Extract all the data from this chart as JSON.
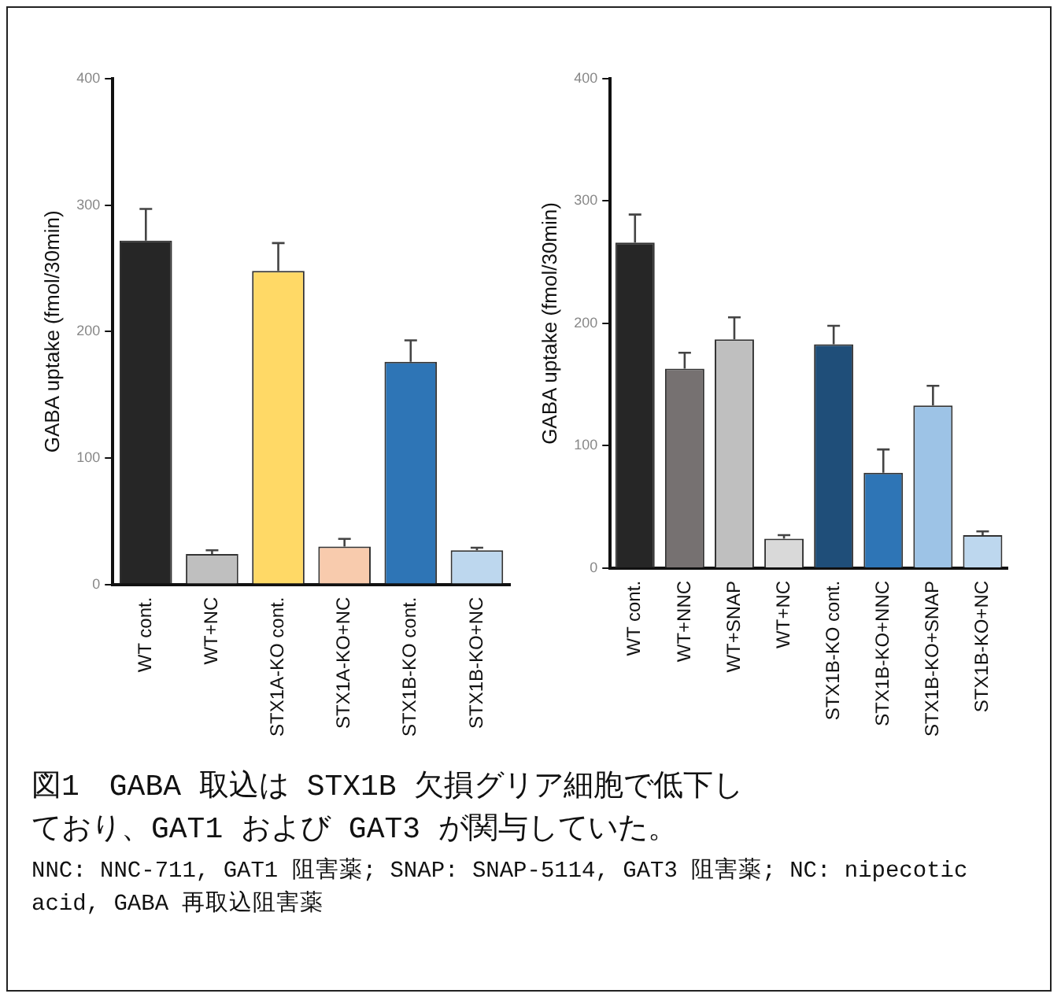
{
  "chart_data": [
    {
      "type": "bar",
      "title": "図1　GABA 取込は STX1B 欠損グリア細胞で低下しており、GAT1 および GAT3 が関与していた。",
      "ylabel": "GABA uptake (fmol/30min)",
      "categories": [
        "WT cont.",
        "WT+NC",
        "STX1A-KO cont.",
        "STX1A-KO+NC",
        "STX1B-KO cont.",
        "STX1B-KO+NC"
      ],
      "values": [
        272,
        24,
        248,
        30,
        176,
        27
      ],
      "colors": [
        "#262626",
        "#bfbfbf",
        "#ffd966",
        "#f8cbad",
        "#2e75b6",
        "#bdd7ee"
      ],
      "errors": [
        [
          272,
          297
        ],
        [
          24,
          27
        ],
        [
          248,
          270
        ],
        [
          30,
          36
        ],
        [
          176,
          193
        ],
        [
          27,
          29
        ]
      ],
      "ylim": [
        0,
        400
      ],
      "yticks": [
        0,
        100,
        200,
        300,
        400
      ],
      "grid": false,
      "legend": false,
      "annotations": [
        "NNC: NNC-711, GAT1 阻害薬; SNAP: SNAP-5114, GAT3 阻害薬; NC: nipecotic acid, GABA 再取込阻害薬"
      ]
    },
    {
      "type": "bar",
      "ylabel": "GABA uptake (fmol/30min)",
      "categories": [
        "WT cont.",
        "WT+NNC",
        "WT+SNAP",
        "WT+NC",
        "STX1B-KO cont.",
        "STX1B-KO+NNC",
        "STX1B-KO+SNAP",
        "STX1B-KO+NC"
      ],
      "values": [
        266,
        163,
        187,
        24,
        183,
        78,
        133,
        27
      ],
      "colors": [
        "#262626",
        "#767171",
        "#bfbfbf",
        "#d9d9d9",
        "#1f4e79",
        "#2e75b6",
        "#9dc3e6",
        "#bdd7ee"
      ],
      "errors": [
        [
          266,
          289
        ],
        [
          163,
          176
        ],
        [
          187,
          205
        ],
        [
          24,
          27
        ],
        [
          183,
          198
        ],
        [
          78,
          97
        ],
        [
          133,
          149
        ],
        [
          27,
          30
        ]
      ],
      "ylim": [
        0,
        400
      ],
      "yticks": [
        0,
        100,
        200,
        300,
        400
      ],
      "grid": false,
      "legend": false
    }
  ]
}
